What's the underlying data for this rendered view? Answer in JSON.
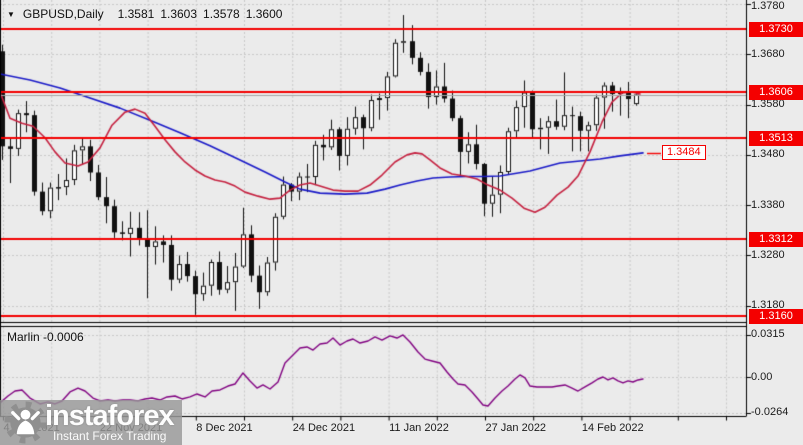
{
  "header": {
    "dropdown_icon": "▼",
    "symbol": "GBPUSD,Daily",
    "open": "1.3581",
    "high": "1.3603",
    "low": "1.3578",
    "close": "1.3600"
  },
  "indicator": {
    "name": "Marlin",
    "value": "-0.0006"
  },
  "watermark": {
    "brand": "instaforex",
    "tagline": "Instant Forex Trading"
  },
  "colors": {
    "background": "#ebebeb",
    "grid": "#c9c9c9",
    "bull_fill": "#ffffff",
    "bear_fill": "#111111",
    "candle_outline": "#111111",
    "ma_fast": "#c5203f",
    "ma_slow": "#1a1ac8",
    "level_line": "#f40000",
    "level_tag_bg": "#f40000",
    "level_tag_text": "#ffffff",
    "marlin_line": "#800080",
    "current_price_line": "#a6a6a6",
    "axis_text": "#1b1b1b",
    "panel_border": "#000000"
  },
  "chart_data": [
    {
      "type": "candlestick",
      "title": "GBPUSD,Daily",
      "x_labels": [
        "4 Nov 2021",
        "22 Nov 2021",
        "8 Dec 2021",
        "24 Dec 2021",
        "11 Jan 2022",
        "27 Jan 2022",
        "14 Feb 2022"
      ],
      "y_ticks": [
        "1.3780",
        "1.3680",
        "1.3580",
        "1.3480",
        "1.3380",
        "1.3280",
        "1.3180"
      ],
      "ylim": [
        1.314,
        1.3788
      ],
      "current_price": 1.36,
      "ma_slow_last_label": "1.3484",
      "levels": [
        {
          "label": "1.3730",
          "price": 1.373
        },
        {
          "label": "1.3606",
          "price": 1.3606
        },
        {
          "label": "1.3513",
          "price": 1.3513
        },
        {
          "label": "1.3312",
          "price": 1.3312
        },
        {
          "label": "1.3160",
          "price": 1.316
        }
      ],
      "candles_ohlc": [
        [
          1.3686,
          1.3699,
          1.347,
          1.3497
        ],
        [
          1.3497,
          1.3513,
          1.3424,
          1.3492
        ],
        [
          1.3492,
          1.357,
          1.3478,
          1.3563
        ],
        [
          1.3563,
          1.3587,
          1.3525,
          1.3559
        ],
        [
          1.3559,
          1.3568,
          1.3399,
          1.3407
        ],
        [
          1.3407,
          1.3425,
          1.336,
          1.3368
        ],
        [
          1.3368,
          1.3425,
          1.3354,
          1.3415
        ],
        [
          1.3415,
          1.3442,
          1.339,
          1.3416
        ],
        [
          1.3416,
          1.3473,
          1.34,
          1.343
        ],
        [
          1.343,
          1.35,
          1.342,
          1.3489
        ],
        [
          1.3489,
          1.3514,
          1.346,
          1.3497
        ],
        [
          1.3497,
          1.351,
          1.3428,
          1.3445
        ],
        [
          1.3445,
          1.346,
          1.339,
          1.3396
        ],
        [
          1.3396,
          1.3436,
          1.3344,
          1.3378
        ],
        [
          1.3378,
          1.3391,
          1.3315,
          1.3326
        ],
        [
          1.3326,
          1.3348,
          1.331,
          1.3323
        ],
        [
          1.3323,
          1.3367,
          1.3278,
          1.3335
        ],
        [
          1.3335,
          1.3366,
          1.33,
          1.3314
        ],
        [
          1.3314,
          1.337,
          1.3195,
          1.3297
        ],
        [
          1.3297,
          1.3338,
          1.3262,
          1.3308
        ],
        [
          1.3308,
          1.332,
          1.3266,
          1.3301
        ],
        [
          1.3301,
          1.332,
          1.321,
          1.3232
        ],
        [
          1.3232,
          1.328,
          1.3225,
          1.3263
        ],
        [
          1.3263,
          1.3287,
          1.3228,
          1.3239
        ],
        [
          1.3239,
          1.325,
          1.3162,
          1.3203
        ],
        [
          1.3203,
          1.3246,
          1.319,
          1.322
        ],
        [
          1.322,
          1.3272,
          1.32,
          1.3267
        ],
        [
          1.3267,
          1.3288,
          1.3202,
          1.3212
        ],
        [
          1.3212,
          1.3259,
          1.3205,
          1.3227
        ],
        [
          1.3227,
          1.3285,
          1.317,
          1.3258
        ],
        [
          1.3258,
          1.3375,
          1.3255,
          1.3322
        ],
        [
          1.3322,
          1.334,
          1.3227,
          1.324
        ],
        [
          1.324,
          1.326,
          1.3174,
          1.3207
        ],
        [
          1.3207,
          1.3277,
          1.32,
          1.3266
        ],
        [
          1.3266,
          1.3364,
          1.325,
          1.3357
        ],
        [
          1.3357,
          1.3437,
          1.3352,
          1.3421
        ],
        [
          1.3421,
          1.3424,
          1.3388,
          1.3407
        ],
        [
          1.3407,
          1.3445,
          1.339,
          1.3437
        ],
        [
          1.3437,
          1.3462,
          1.3406,
          1.3436
        ],
        [
          1.3436,
          1.3508,
          1.342,
          1.35
        ],
        [
          1.35,
          1.352,
          1.3469,
          1.3495
        ],
        [
          1.3495,
          1.355,
          1.349,
          1.3531
        ],
        [
          1.3531,
          1.3535,
          1.3449,
          1.3478
        ],
        [
          1.3478,
          1.3555,
          1.3459,
          1.3532
        ],
        [
          1.3532,
          1.3576,
          1.352,
          1.3555
        ],
        [
          1.3555,
          1.356,
          1.3491,
          1.3533
        ],
        [
          1.3533,
          1.36,
          1.3527,
          1.3589
        ],
        [
          1.3589,
          1.3602,
          1.355,
          1.3593
        ],
        [
          1.3593,
          1.3645,
          1.3568,
          1.3636
        ],
        [
          1.3636,
          1.371,
          1.3634,
          1.3703
        ],
        [
          1.3703,
          1.3758,
          1.3683,
          1.3706
        ],
        [
          1.3706,
          1.3738,
          1.366,
          1.3673
        ],
        [
          1.3673,
          1.3684,
          1.3638,
          1.3645
        ],
        [
          1.3645,
          1.3662,
          1.3572,
          1.3595
        ],
        [
          1.3595,
          1.3648,
          1.358,
          1.3616
        ],
        [
          1.3616,
          1.3663,
          1.3584,
          1.3592
        ],
        [
          1.3592,
          1.3608,
          1.3547,
          1.3553
        ],
        [
          1.3553,
          1.3558,
          1.3439,
          1.3486
        ],
        [
          1.3486,
          1.3525,
          1.3463,
          1.3501
        ],
        [
          1.3501,
          1.354,
          1.3451,
          1.3462
        ],
        [
          1.3462,
          1.3464,
          1.3358,
          1.3383
        ],
        [
          1.3383,
          1.3437,
          1.3357,
          1.3401
        ],
        [
          1.3401,
          1.3459,
          1.3364,
          1.3446
        ],
        [
          1.3446,
          1.3534,
          1.344,
          1.3527
        ],
        [
          1.3527,
          1.3588,
          1.3513,
          1.3575
        ],
        [
          1.3575,
          1.3628,
          1.3534,
          1.3604
        ],
        [
          1.3604,
          1.3608,
          1.3515,
          1.3531
        ],
        [
          1.3531,
          1.3553,
          1.3491,
          1.3534
        ],
        [
          1.3534,
          1.3557,
          1.3482,
          1.3547
        ],
        [
          1.3547,
          1.359,
          1.353,
          1.3536
        ],
        [
          1.3536,
          1.3644,
          1.3529,
          1.3559
        ],
        [
          1.3559,
          1.3576,
          1.3487,
          1.3557
        ],
        [
          1.3557,
          1.3566,
          1.3487,
          1.3528
        ],
        [
          1.3528,
          1.3546,
          1.3487,
          1.3539
        ],
        [
          1.3539,
          1.36,
          1.3528,
          1.3594
        ],
        [
          1.3594,
          1.3624,
          1.3532,
          1.3618
        ],
        [
          1.3618,
          1.3625,
          1.3566,
          1.3601
        ],
        [
          1.3601,
          1.3614,
          1.3558,
          1.3605
        ],
        [
          1.3605,
          1.3625,
          1.3553,
          1.3591
        ],
        [
          1.3581,
          1.3603,
          1.3578,
          1.36
        ]
      ],
      "ma_fast_points": [
        [
          0,
          1.3605
        ],
        [
          10,
          1.3553
        ],
        [
          22,
          1.3543
        ],
        [
          33,
          1.3537
        ],
        [
          45,
          1.3514
        ],
        [
          55,
          1.3486
        ],
        [
          65,
          1.3464
        ],
        [
          78,
          1.3458
        ],
        [
          88,
          1.3466
        ],
        [
          100,
          1.3494
        ],
        [
          112,
          1.3539
        ],
        [
          125,
          1.3565
        ],
        [
          135,
          1.3571
        ],
        [
          145,
          1.3563
        ],
        [
          155,
          1.3537
        ],
        [
          165,
          1.351
        ],
        [
          175,
          1.3486
        ],
        [
          185,
          1.3466
        ],
        [
          195,
          1.345
        ],
        [
          205,
          1.3438
        ],
        [
          215,
          1.343
        ],
        [
          225,
          1.3426
        ],
        [
          235,
          1.3418
        ],
        [
          245,
          1.3406
        ],
        [
          258,
          1.3398
        ],
        [
          270,
          1.3392
        ],
        [
          280,
          1.3394
        ],
        [
          290,
          1.341
        ],
        [
          300,
          1.342
        ],
        [
          310,
          1.3424
        ],
        [
          320,
          1.3418
        ],
        [
          333,
          1.341
        ],
        [
          345,
          1.3408
        ],
        [
          358,
          1.3408
        ],
        [
          370,
          1.342
        ],
        [
          382,
          1.344
        ],
        [
          395,
          1.3466
        ],
        [
          407,
          1.348
        ],
        [
          415,
          1.3484
        ],
        [
          422,
          1.3482
        ],
        [
          430,
          1.347
        ],
        [
          440,
          1.3454
        ],
        [
          452,
          1.3442
        ],
        [
          465,
          1.3438
        ],
        [
          477,
          1.3432
        ],
        [
          488,
          1.342
        ],
        [
          500,
          1.341
        ],
        [
          512,
          1.3394
        ],
        [
          524,
          1.3374
        ],
        [
          535,
          1.3366
        ],
        [
          545,
          1.3376
        ],
        [
          557,
          1.34
        ],
        [
          568,
          1.3416
        ],
        [
          578,
          1.3438
        ],
        [
          590,
          1.3486
        ],
        [
          602,
          1.3545
        ],
        [
          612,
          1.3585
        ],
        [
          622,
          1.3603
        ],
        [
          632,
          1.3605
        ],
        [
          640,
          1.3601
        ]
      ],
      "ma_slow_points": [
        [
          0,
          1.3641
        ],
        [
          30,
          1.3629
        ],
        [
          60,
          1.3613
        ],
        [
          90,
          1.3593
        ],
        [
          120,
          1.3573
        ],
        [
          150,
          1.3549
        ],
        [
          180,
          1.3524
        ],
        [
          210,
          1.3498
        ],
        [
          240,
          1.347
        ],
        [
          265,
          1.3446
        ],
        [
          285,
          1.3426
        ],
        [
          300,
          1.3412
        ],
        [
          320,
          1.3404
        ],
        [
          345,
          1.3402
        ],
        [
          367,
          1.3404
        ],
        [
          385,
          1.3412
        ],
        [
          400,
          1.342
        ],
        [
          417,
          1.3428
        ],
        [
          433,
          1.3434
        ],
        [
          450,
          1.3436
        ],
        [
          467,
          1.3437
        ],
        [
          483,
          1.3437
        ],
        [
          500,
          1.3438
        ],
        [
          530,
          1.3448
        ],
        [
          560,
          1.3464
        ],
        [
          580,
          1.3468
        ],
        [
          600,
          1.3472
        ],
        [
          620,
          1.3478
        ],
        [
          643,
          1.3484
        ]
      ]
    },
    {
      "type": "line",
      "name": "Marlin",
      "value_label": "-0.0006",
      "y_ticks": [
        "0.0315",
        "0.00",
        "-0.0264"
      ],
      "ylim": [
        -0.0295,
        0.0345
      ],
      "points": [
        [
          0,
          -0.019
        ],
        [
          8,
          -0.0138
        ],
        [
          15,
          -0.0101
        ],
        [
          22,
          -0.0093
        ],
        [
          30,
          -0.0153
        ],
        [
          40,
          -0.0197
        ],
        [
          48,
          -0.0182
        ],
        [
          55,
          -0.0197
        ],
        [
          62,
          -0.0175
        ],
        [
          70,
          -0.0108
        ],
        [
          78,
          -0.0079
        ],
        [
          85,
          -0.0101
        ],
        [
          93,
          -0.0153
        ],
        [
          100,
          -0.0175
        ],
        [
          108,
          -0.0168
        ],
        [
          115,
          -0.0175
        ],
        [
          123,
          -0.0168
        ],
        [
          130,
          -0.0168
        ],
        [
          138,
          -0.0175
        ],
        [
          145,
          -0.016
        ],
        [
          152,
          -0.0153
        ],
        [
          160,
          -0.0168
        ],
        [
          167,
          -0.0145
        ],
        [
          175,
          -0.0138
        ],
        [
          182,
          -0.016
        ],
        [
          190,
          -0.0145
        ],
        [
          197,
          -0.0123
        ],
        [
          205,
          -0.0145
        ],
        [
          212,
          -0.0101
        ],
        [
          220,
          -0.0093
        ],
        [
          228,
          -0.0064
        ],
        [
          235,
          -0.0049
        ],
        [
          243,
          0.0033
        ],
        [
          250,
          -0.0027
        ],
        [
          257,
          -0.0079
        ],
        [
          263,
          -0.0056
        ],
        [
          270,
          -0.0086
        ],
        [
          278,
          -0.0034
        ],
        [
          285,
          0.0107
        ],
        [
          292,
          0.0159
        ],
        [
          300,
          0.0218
        ],
        [
          307,
          0.0226
        ],
        [
          313,
          0.0203
        ],
        [
          320,
          0.0248
        ],
        [
          327,
          0.0255
        ],
        [
          333,
          0.0292
        ],
        [
          340,
          0.024
        ],
        [
          347,
          0.027
        ],
        [
          353,
          0.0285
        ],
        [
          360,
          0.0255
        ],
        [
          368,
          0.027
        ],
        [
          375,
          0.03
        ],
        [
          382,
          0.0277
        ],
        [
          390,
          0.0308
        ],
        [
          397,
          0.0292
        ],
        [
          403,
          0.0315
        ],
        [
          410,
          0.0263
        ],
        [
          418,
          0.0188
        ],
        [
          425,
          0.0136
        ],
        [
          432,
          0.0122
        ],
        [
          440,
          0.0107
        ],
        [
          447,
          0.004
        ],
        [
          453,
          -0.0012
        ],
        [
          458,
          -0.0049
        ],
        [
          465,
          -0.0056
        ],
        [
          472,
          -0.0108
        ],
        [
          478,
          -0.016
        ],
        [
          483,
          -0.0205
        ],
        [
          488,
          -0.0212
        ],
        [
          495,
          -0.0153
        ],
        [
          502,
          -0.0101
        ],
        [
          508,
          -0.0064
        ],
        [
          515,
          -0.0012
        ],
        [
          520,
          0.0018
        ],
        [
          525,
          -0.0004
        ],
        [
          530,
          -0.0064
        ],
        [
          537,
          -0.0071
        ],
        [
          545,
          -0.0071
        ],
        [
          552,
          -0.0071
        ],
        [
          558,
          -0.0064
        ],
        [
          565,
          -0.0056
        ],
        [
          572,
          -0.0079
        ],
        [
          578,
          -0.0101
        ],
        [
          585,
          -0.0071
        ],
        [
          592,
          -0.0041
        ],
        [
          598,
          -0.0012
        ],
        [
          603,
          0.0003
        ],
        [
          608,
          -0.0019
        ],
        [
          613,
          -0.0004
        ],
        [
          618,
          -0.0026
        ],
        [
          623,
          -0.0041
        ],
        [
          628,
          -0.0026
        ],
        [
          633,
          -0.0034
        ],
        [
          638,
          -0.0019
        ],
        [
          643,
          -0.0012
        ]
      ]
    }
  ]
}
